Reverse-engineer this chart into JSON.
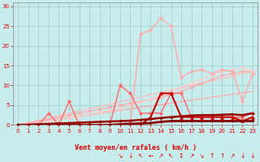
{
  "xlabel": "Vent moyen/en rafales ( km/h )",
  "bg_color": "#c8ecec",
  "grid_color": "#a8d4d4",
  "text_color": "#dd0000",
  "axis_color": "#888888",
  "xlim": [
    -0.5,
    23.5
  ],
  "ylim": [
    0,
    31
  ],
  "xticks": [
    0,
    1,
    2,
    3,
    4,
    5,
    6,
    7,
    8,
    9,
    10,
    11,
    12,
    13,
    14,
    15,
    16,
    17,
    18,
    19,
    20,
    21,
    22,
    23
  ],
  "yticks": [
    0,
    5,
    10,
    15,
    20,
    25,
    30
  ],
  "lines": [
    {
      "x": [
        0,
        23
      ],
      "y": [
        0,
        8.5
      ],
      "color": "#ffaaaa",
      "lw": 0.9,
      "marker": null,
      "ms": 0,
      "zorder": 2
    },
    {
      "x": [
        0,
        23
      ],
      "y": [
        0,
        13.5
      ],
      "color": "#ffbbbb",
      "lw": 0.9,
      "marker": null,
      "ms": 0,
      "zorder": 2
    },
    {
      "x": [
        0,
        1,
        2,
        3,
        4,
        5,
        6,
        7,
        8,
        9,
        10,
        11,
        12,
        13,
        14,
        15,
        16,
        17,
        18,
        19,
        20,
        21,
        22,
        23
      ],
      "y": [
        0,
        0.5,
        1.0,
        1.5,
        2.0,
        2.5,
        3.0,
        3.5,
        4.0,
        4.5,
        5.0,
        5.5,
        6.0,
        6.5,
        7.0,
        7.8,
        8.5,
        9.5,
        10.5,
        11.5,
        12.5,
        13.0,
        13.5,
        13.5
      ],
      "color": "#ffaaaa",
      "lw": 0.9,
      "marker": "D",
      "ms": 2.0,
      "zorder": 3
    },
    {
      "x": [
        0,
        1,
        2,
        3,
        4,
        5,
        6,
        7,
        8,
        9,
        10,
        11,
        12,
        13,
        14,
        15,
        16,
        17,
        18,
        19,
        20,
        21,
        22,
        23
      ],
      "y": [
        0,
        0.3,
        0.7,
        1.0,
        1.4,
        1.8,
        2.2,
        2.7,
        3.2,
        3.7,
        4.3,
        5.0,
        5.8,
        6.5,
        7.5,
        8.5,
        9.5,
        10.5,
        11.5,
        12.5,
        13.5,
        14.0,
        14.5,
        13.5
      ],
      "color": "#ffcccc",
      "lw": 0.9,
      "marker": "D",
      "ms": 2.0,
      "zorder": 3
    },
    {
      "x": [
        0,
        1,
        2,
        3,
        4,
        5,
        6,
        7,
        8,
        9,
        10,
        11,
        12,
        13,
        14,
        15,
        16,
        17,
        18,
        19,
        20,
        21,
        22,
        23
      ],
      "y": [
        0,
        0,
        0,
        0,
        0,
        0,
        0,
        0,
        0,
        0,
        0,
        0,
        23,
        24,
        27,
        25,
        12,
        13.5,
        14,
        13,
        14,
        13.5,
        6,
        13
      ],
      "color": "#ffaaaa",
      "lw": 1.0,
      "marker": "D",
      "ms": 2.2,
      "zorder": 4
    },
    {
      "x": [
        0,
        1,
        2,
        3,
        4,
        5,
        6,
        7,
        8,
        9,
        10,
        11,
        12,
        13,
        14,
        15,
        16,
        17,
        18,
        19,
        20,
        21,
        22,
        23
      ],
      "y": [
        0,
        0,
        0,
        3,
        0,
        6,
        0,
        0,
        0,
        0,
        10,
        8,
        3,
        3,
        3,
        8,
        8,
        2,
        2,
        2,
        2,
        2,
        2,
        3
      ],
      "color": "#ff6666",
      "lw": 1.0,
      "marker": "D",
      "ms": 2.2,
      "zorder": 5
    },
    {
      "x": [
        0,
        1,
        2,
        3,
        4,
        5,
        6,
        7,
        8,
        9,
        10,
        11,
        12,
        13,
        14,
        15,
        16,
        17,
        18,
        19,
        20,
        21,
        22,
        23
      ],
      "y": [
        0,
        0,
        0,
        0,
        0,
        0,
        0,
        0,
        0,
        0,
        0,
        0,
        0,
        2,
        8,
        8,
        2,
        2,
        2,
        2,
        2,
        2,
        1,
        2
      ],
      "color": "#cc0000",
      "lw": 1.5,
      "marker": "^",
      "ms": 3.0,
      "zorder": 6
    },
    {
      "x": [
        0,
        1,
        2,
        3,
        4,
        5,
        6,
        7,
        8,
        9,
        10,
        11,
        12,
        13,
        14,
        15,
        16,
        17,
        18,
        19,
        20,
        21,
        22,
        23
      ],
      "y": [
        0,
        0.1,
        0.2,
        0.3,
        0.4,
        0.5,
        0.6,
        0.7,
        0.8,
        0.9,
        1.0,
        1.1,
        1.3,
        1.5,
        1.8,
        2.0,
        2.2,
        2.4,
        2.5,
        2.5,
        2.6,
        2.7,
        2.5,
        3.0
      ],
      "color": "#990000",
      "lw": 1.8,
      "marker": "D",
      "ms": 1.8,
      "zorder": 7
    },
    {
      "x": [
        0,
        1,
        2,
        3,
        4,
        5,
        6,
        7,
        8,
        9,
        10,
        11,
        12,
        13,
        14,
        15,
        16,
        17,
        18,
        19,
        20,
        21,
        22,
        23
      ],
      "y": [
        0,
        0,
        0,
        0,
        0,
        0,
        0,
        0,
        0,
        0,
        0.2,
        0.3,
        0.4,
        0.5,
        0.8,
        1.0,
        1.0,
        1.0,
        1.0,
        1.0,
        1.0,
        1.0,
        1.0,
        1.0
      ],
      "color": "#880000",
      "lw": 2.0,
      "marker": "D",
      "ms": 1.8,
      "zorder": 7
    }
  ],
  "wind_symbols": {
    "x_positions": [
      10,
      11,
      12,
      13,
      14,
      15,
      16,
      17,
      18,
      19,
      20,
      21,
      22,
      23
    ],
    "symbols": [
      "↘",
      "↓",
      "↖",
      "←",
      "↗",
      "↖",
      "↕",
      "↗",
      "↘",
      "↑",
      "↑",
      "↗",
      "↓",
      "↓"
    ]
  }
}
